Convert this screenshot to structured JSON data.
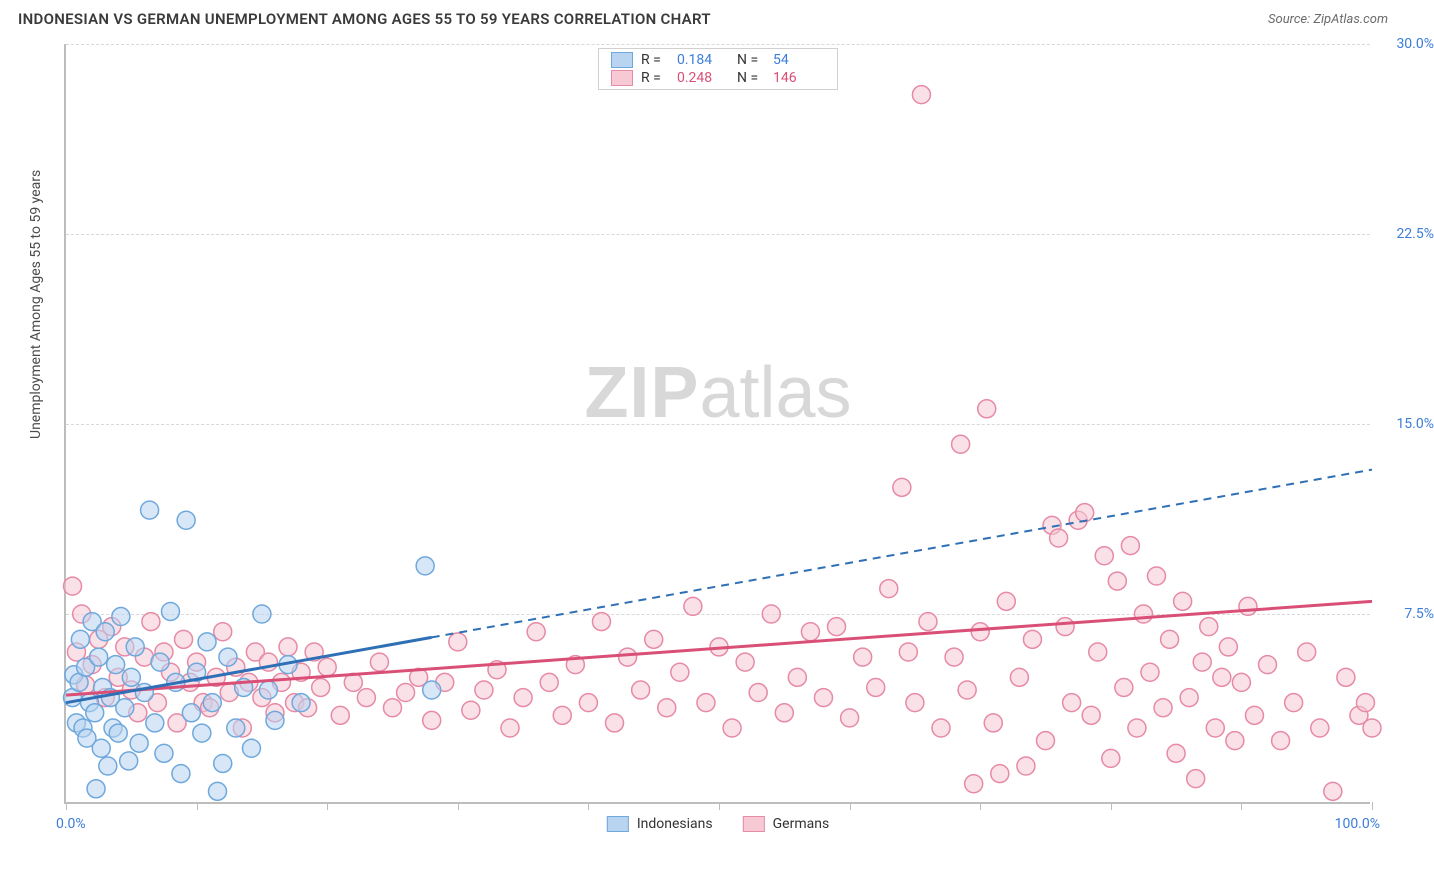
{
  "title": "INDONESIAN VS GERMAN UNEMPLOYMENT AMONG AGES 55 TO 59 YEARS CORRELATION CHART",
  "source_prefix": "Source: ",
  "source_name": "ZipAtlas.com",
  "ylabel": "Unemployment Among Ages 55 to 59 years",
  "watermark_a": "ZIP",
  "watermark_b": "atlas",
  "chart": {
    "type": "scatter",
    "xlim": [
      0,
      100
    ],
    "ylim": [
      0,
      30
    ],
    "xticks": [
      0,
      10,
      20,
      30,
      40,
      50,
      60,
      70,
      80,
      90,
      100
    ],
    "yticks": [
      7.5,
      15.0,
      22.5,
      30.0
    ],
    "ytick_labels": [
      "7.5%",
      "15.0%",
      "22.5%",
      "30.0%"
    ],
    "xmin_label": "0.0%",
    "xmax_label": "100.0%",
    "background_color": "#ffffff",
    "grid_color": "#d8d8d8",
    "axis_color": "#bdbdbd",
    "marker_radius": 9,
    "marker_stroke_width": 1.5,
    "series": {
      "indonesians": {
        "label": "Indonesians",
        "fill": "#b8d4f0",
        "stroke": "#6fa8dc",
        "line_color": "#2f6fb5",
        "R": "0.184",
        "N": "54",
        "stat_color": "#3b7dd8",
        "trend": {
          "x1": 0,
          "y1": 4.0,
          "x2": 100,
          "y2": 13.2,
          "solid_until_x": 28
        },
        "points": [
          [
            0.5,
            4.2
          ],
          [
            0.6,
            5.1
          ],
          [
            0.8,
            3.2
          ],
          [
            1.0,
            4.8
          ],
          [
            1.1,
            6.5
          ],
          [
            1.3,
            3.0
          ],
          [
            1.5,
            5.4
          ],
          [
            1.6,
            2.6
          ],
          [
            1.8,
            4.0
          ],
          [
            2.0,
            7.2
          ],
          [
            2.2,
            3.6
          ],
          [
            2.3,
            0.6
          ],
          [
            2.5,
            5.8
          ],
          [
            2.7,
            2.2
          ],
          [
            2.8,
            4.6
          ],
          [
            3.0,
            6.8
          ],
          [
            3.2,
            1.5
          ],
          [
            3.4,
            4.2
          ],
          [
            3.6,
            3.0
          ],
          [
            3.8,
            5.5
          ],
          [
            4.0,
            2.8
          ],
          [
            4.2,
            7.4
          ],
          [
            4.5,
            3.8
          ],
          [
            4.8,
            1.7
          ],
          [
            5.0,
            5.0
          ],
          [
            5.3,
            6.2
          ],
          [
            5.6,
            2.4
          ],
          [
            6.0,
            4.4
          ],
          [
            6.4,
            11.6
          ],
          [
            6.8,
            3.2
          ],
          [
            7.2,
            5.6
          ],
          [
            7.5,
            2.0
          ],
          [
            8.0,
            7.6
          ],
          [
            8.4,
            4.8
          ],
          [
            8.8,
            1.2
          ],
          [
            9.2,
            11.2
          ],
          [
            9.6,
            3.6
          ],
          [
            10.0,
            5.2
          ],
          [
            10.4,
            2.8
          ],
          [
            10.8,
            6.4
          ],
          [
            11.2,
            4.0
          ],
          [
            11.6,
            0.5
          ],
          [
            12.0,
            1.6
          ],
          [
            12.4,
            5.8
          ],
          [
            13.0,
            3.0
          ],
          [
            13.6,
            4.6
          ],
          [
            14.2,
            2.2
          ],
          [
            15.0,
            7.5
          ],
          [
            15.5,
            4.5
          ],
          [
            16.0,
            3.3
          ],
          [
            17.0,
            5.5
          ],
          [
            18.0,
            4.0
          ],
          [
            27.5,
            9.4
          ],
          [
            28.0,
            4.5
          ]
        ]
      },
      "germans": {
        "label": "Germans",
        "fill": "#f6c9d5",
        "stroke": "#e68aa5",
        "line_color": "#d94f76",
        "R": "0.248",
        "N": "146",
        "stat_color": "#d94f76",
        "trend": {
          "x1": 0,
          "y1": 4.3,
          "x2": 100,
          "y2": 8.0,
          "solid_until_x": 100
        },
        "points": [
          [
            0.5,
            8.6
          ],
          [
            0.8,
            6.0
          ],
          [
            1.2,
            7.5
          ],
          [
            1.5,
            4.7
          ],
          [
            2.0,
            5.5
          ],
          [
            2.5,
            6.5
          ],
          [
            3.0,
            4.2
          ],
          [
            3.5,
            7.0
          ],
          [
            4.0,
            5.0
          ],
          [
            4.5,
            6.2
          ],
          [
            5.0,
            4.5
          ],
          [
            5.5,
            3.6
          ],
          [
            6.0,
            5.8
          ],
          [
            6.5,
            7.2
          ],
          [
            7.0,
            4.0
          ],
          [
            7.5,
            6.0
          ],
          [
            8.0,
            5.2
          ],
          [
            8.5,
            3.2
          ],
          [
            9.0,
            6.5
          ],
          [
            9.5,
            4.8
          ],
          [
            10.0,
            5.6
          ],
          [
            10.5,
            4.0
          ],
          [
            11.0,
            3.8
          ],
          [
            11.5,
            5.0
          ],
          [
            12.0,
            6.8
          ],
          [
            12.5,
            4.4
          ],
          [
            13.0,
            5.4
          ],
          [
            13.5,
            3.0
          ],
          [
            14.0,
            4.8
          ],
          [
            14.5,
            6.0
          ],
          [
            15.0,
            4.2
          ],
          [
            15.5,
            5.6
          ],
          [
            16.0,
            3.6
          ],
          [
            16.5,
            4.8
          ],
          [
            17.0,
            6.2
          ],
          [
            17.5,
            4.0
          ],
          [
            18.0,
            5.2
          ],
          [
            18.5,
            3.8
          ],
          [
            19.0,
            6.0
          ],
          [
            19.5,
            4.6
          ],
          [
            20.0,
            5.4
          ],
          [
            21.0,
            3.5
          ],
          [
            22.0,
            4.8
          ],
          [
            23.0,
            4.2
          ],
          [
            24.0,
            5.6
          ],
          [
            25.0,
            3.8
          ],
          [
            26.0,
            4.4
          ],
          [
            27.0,
            5.0
          ],
          [
            28.0,
            3.3
          ],
          [
            29.0,
            4.8
          ],
          [
            30.0,
            6.4
          ],
          [
            31.0,
            3.7
          ],
          [
            32.0,
            4.5
          ],
          [
            33.0,
            5.3
          ],
          [
            34.0,
            3.0
          ],
          [
            35.0,
            4.2
          ],
          [
            36.0,
            6.8
          ],
          [
            37.0,
            4.8
          ],
          [
            38.0,
            3.5
          ],
          [
            39.0,
            5.5
          ],
          [
            40.0,
            4.0
          ],
          [
            41.0,
            7.2
          ],
          [
            42.0,
            3.2
          ],
          [
            43.0,
            5.8
          ],
          [
            44.0,
            4.5
          ],
          [
            45.0,
            6.5
          ],
          [
            46.0,
            3.8
          ],
          [
            47.0,
            5.2
          ],
          [
            48.0,
            7.8
          ],
          [
            49.0,
            4.0
          ],
          [
            50.0,
            6.2
          ],
          [
            51.0,
            3.0
          ],
          [
            52.0,
            5.6
          ],
          [
            53.0,
            4.4
          ],
          [
            54.0,
            7.5
          ],
          [
            55.0,
            3.6
          ],
          [
            56.0,
            5.0
          ],
          [
            57.0,
            6.8
          ],
          [
            58.0,
            4.2
          ],
          [
            59.0,
            7.0
          ],
          [
            60.0,
            3.4
          ],
          [
            61.0,
            5.8
          ],
          [
            62.0,
            4.6
          ],
          [
            63.0,
            8.5
          ],
          [
            64.0,
            12.5
          ],
          [
            64.5,
            6.0
          ],
          [
            65.0,
            4.0
          ],
          [
            65.5,
            28.0
          ],
          [
            66.0,
            7.2
          ],
          [
            67.0,
            3.0
          ],
          [
            68.0,
            5.8
          ],
          [
            68.5,
            14.2
          ],
          [
            69.0,
            4.5
          ],
          [
            70.0,
            6.8
          ],
          [
            70.5,
            15.6
          ],
          [
            71.0,
            3.2
          ],
          [
            72.0,
            8.0
          ],
          [
            73.0,
            5.0
          ],
          [
            74.0,
            6.5
          ],
          [
            75.0,
            2.5
          ],
          [
            75.5,
            11.0
          ],
          [
            76.0,
            10.5
          ],
          [
            76.5,
            7.0
          ],
          [
            77.0,
            4.0
          ],
          [
            77.5,
            11.2
          ],
          [
            78.0,
            11.5
          ],
          [
            78.5,
            3.5
          ],
          [
            79.0,
            6.0
          ],
          [
            79.5,
            9.8
          ],
          [
            80.0,
            1.8
          ],
          [
            80.5,
            8.8
          ],
          [
            81.0,
            4.6
          ],
          [
            81.5,
            10.2
          ],
          [
            82.0,
            3.0
          ],
          [
            82.5,
            7.5
          ],
          [
            83.0,
            5.2
          ],
          [
            83.5,
            9.0
          ],
          [
            84.0,
            3.8
          ],
          [
            84.5,
            6.5
          ],
          [
            85.0,
            2.0
          ],
          [
            85.5,
            8.0
          ],
          [
            86.0,
            4.2
          ],
          [
            86.5,
            1.0
          ],
          [
            87.0,
            5.6
          ],
          [
            87.5,
            7.0
          ],
          [
            88.0,
            3.0
          ],
          [
            88.5,
            5.0
          ],
          [
            89.0,
            6.2
          ],
          [
            89.5,
            2.5
          ],
          [
            90.0,
            4.8
          ],
          [
            90.5,
            7.8
          ],
          [
            91.0,
            3.5
          ],
          [
            92.0,
            5.5
          ],
          [
            93.0,
            2.5
          ],
          [
            94.0,
            4.0
          ],
          [
            95.0,
            6.0
          ],
          [
            96.0,
            3.0
          ],
          [
            97.0,
            0.5
          ],
          [
            98.0,
            5.0
          ],
          [
            99.0,
            3.5
          ],
          [
            99.5,
            4.0
          ],
          [
            100.0,
            3.0
          ],
          [
            69.5,
            0.8
          ],
          [
            71.5,
            1.2
          ],
          [
            73.5,
            1.5
          ]
        ]
      }
    }
  },
  "legend_top": {
    "r_label": "R =",
    "n_label": "N ="
  }
}
